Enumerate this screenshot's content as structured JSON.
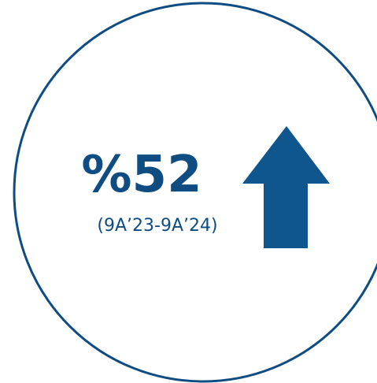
{
  "stat": {
    "value": "%52",
    "period": "(9A’23-9A’24)"
  }
}
